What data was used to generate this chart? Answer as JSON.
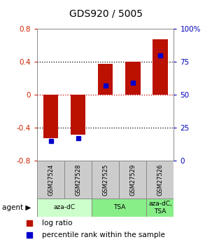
{
  "title": "GDS920 / 5005",
  "samples": [
    "GSM27524",
    "GSM27528",
    "GSM27525",
    "GSM27529",
    "GSM27526"
  ],
  "log_ratios": [
    -0.52,
    -0.48,
    0.38,
    0.4,
    0.68
  ],
  "percentile_ranks": [
    15,
    17,
    57,
    59,
    80
  ],
  "ylim_left": [
    -0.8,
    0.8
  ],
  "ylim_right": [
    0,
    100
  ],
  "bar_color": "#bb1100",
  "dot_color": "#0000cc",
  "grid_color": "#000000",
  "bg_color": "#ffffff",
  "label_color_left": "#cc2200",
  "label_color_right": "#0000bb",
  "legend_log_ratio": "log ratio",
  "legend_percentile": "percentile rank within the sample",
  "agent_groups": [
    {
      "label": "aza-dC",
      "xstart": 0,
      "xend": 2,
      "color": "#ccffcc"
    },
    {
      "label": "TSA",
      "xstart": 2,
      "xend": 4,
      "color": "#88ee88"
    },
    {
      "label": "aza-dC,\nTSA",
      "xstart": 4,
      "xend": 5,
      "color": "#88ee88"
    }
  ]
}
